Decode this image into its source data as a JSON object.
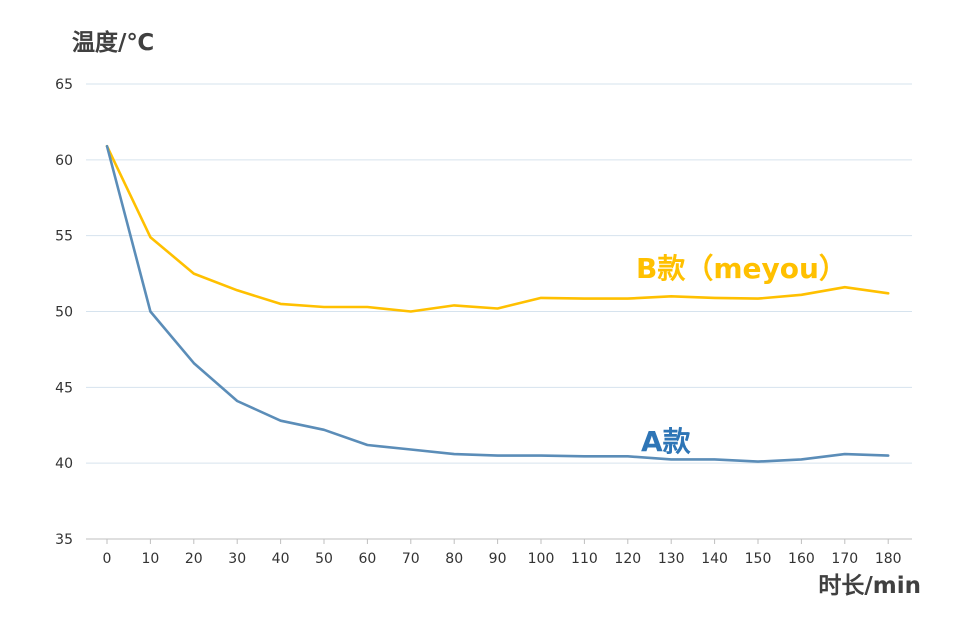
{
  "chart_data": {
    "type": "line",
    "ylabel": "温度/℃",
    "xlabel": "时长/min",
    "x": [
      0,
      10,
      20,
      30,
      40,
      50,
      60,
      70,
      80,
      90,
      100,
      110,
      120,
      130,
      140,
      150,
      160,
      170,
      180
    ],
    "ylim": [
      35,
      65
    ],
    "yticks": [
      35,
      40,
      45,
      50,
      55,
      60,
      65
    ],
    "grid": true,
    "series": [
      {
        "name": "B款（meyou）",
        "color": "#FFC000",
        "values": [
          60.9,
          54.9,
          52.5,
          51.4,
          50.5,
          50.3,
          50.3,
          50.0,
          50.4,
          50.2,
          50.9,
          50.85,
          50.85,
          51.0,
          50.9,
          50.85,
          51.1,
          51.6,
          51.2
        ]
      },
      {
        "name": "A款",
        "color": "#5B8DB8",
        "label_color": "#2E75B6",
        "values": [
          60.9,
          50.0,
          46.6,
          44.1,
          42.8,
          42.2,
          41.2,
          40.9,
          40.6,
          40.5,
          40.5,
          40.45,
          40.45,
          40.25,
          40.25,
          40.1,
          40.25,
          40.6,
          40.5
        ]
      }
    ],
    "grid_color": "#D6E3EE"
  }
}
